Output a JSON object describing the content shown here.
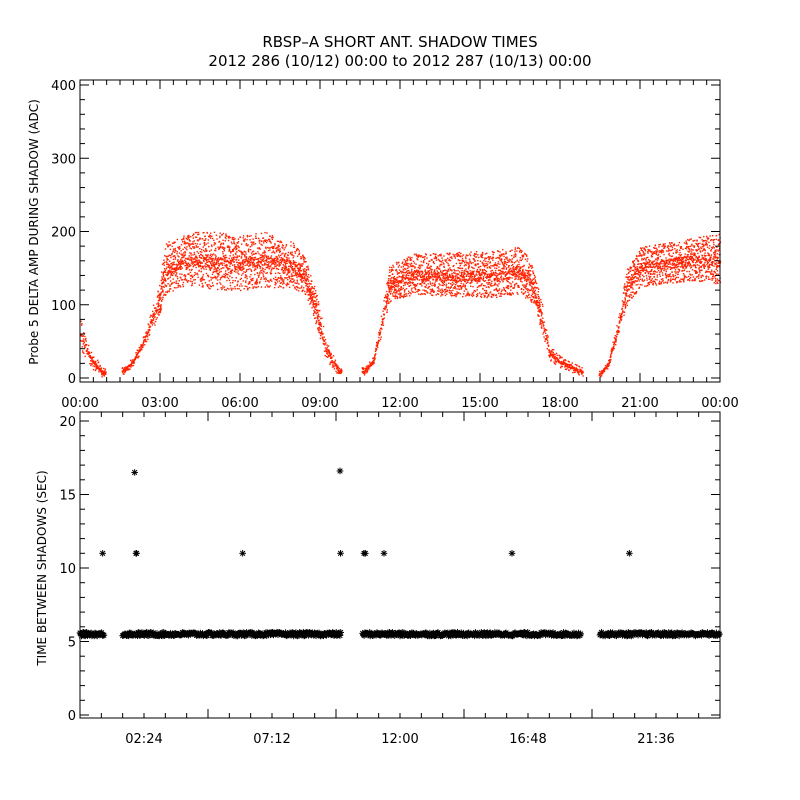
{
  "title": {
    "line1": "RBSP–A SHORT ANT. SHADOW TIMES",
    "line2": "2012 286 (10/12) 00:00 to 2012 287 (10/13) 00:00"
  },
  "colors": {
    "series_top": "#ff2200",
    "series_bottom": "#000000",
    "axes": "#000000"
  },
  "chart_data": [
    {
      "type": "scatter",
      "ylabel": "Probe 5 DELTA AMP DURING SHADOW (ADC)",
      "xlabel": "",
      "xlim_hours": [
        0,
        24
      ],
      "ylim": [
        0,
        400
      ],
      "x_ticks": [
        "00:00",
        "03:00",
        "06:00",
        "09:00",
        "12:00",
        "15:00",
        "18:00",
        "21:00",
        "00:00"
      ],
      "y_ticks": [
        "0",
        "100",
        "200",
        "300",
        "400"
      ],
      "series": [
        {
          "marker": "dot",
          "color": "#ff2200",
          "envelope": {
            "x_hours": [
              0.0,
              0.4,
              0.8,
              1.6,
              2.0,
              2.4,
              2.9,
              3.2,
              4.0,
              5.0,
              6.0,
              7.0,
              8.0,
              8.5,
              8.9,
              9.2,
              9.7,
              10.6,
              11.0,
              11.3,
              11.6,
              12.5,
              14.0,
              15.5,
              16.5,
              16.9,
              17.3,
              17.6,
              18.0,
              18.8,
              19.5,
              19.8,
              20.1,
              20.5,
              21.0,
              22.0,
              23.0,
              24.0
            ],
            "y_low": [
              40,
              15,
              2,
              5,
              18,
              45,
              80,
              115,
              128,
              122,
              120,
              125,
              122,
              110,
              65,
              25,
              4,
              2,
              20,
              60,
              105,
              115,
              112,
              110,
              115,
              105,
              65,
              25,
              15,
              3,
              2,
              15,
              50,
              100,
              125,
              130,
              133,
              128
            ],
            "y_high": [
              80,
              40,
              15,
              15,
              30,
              60,
              120,
              185,
              200,
              200,
              195,
              200,
              185,
              160,
              110,
              55,
              15,
              15,
              30,
              90,
              155,
              170,
              172,
              175,
              180,
              160,
              105,
              45,
              30,
              15,
              10,
              25,
              70,
              150,
              180,
              185,
              192,
              198
            ]
          }
        }
      ]
    },
    {
      "type": "scatter",
      "ylabel": "TIME BETWEEN SHADOWS (SEC)",
      "xlabel": "",
      "xlim_hours": [
        0,
        24
      ],
      "ylim": [
        0,
        20
      ],
      "x_ticks": [
        "02:24",
        "07:12",
        "12:00",
        "16:48",
        "21:36"
      ],
      "y_ticks": [
        "0",
        "5",
        "10",
        "15",
        "20"
      ],
      "series": [
        {
          "marker": "asterisk",
          "color": "#000000",
          "baseline_value": 5.5,
          "baseline_segments_hours": [
            [
              0.0,
              0.9
            ],
            [
              1.6,
              9.8
            ],
            [
              10.6,
              18.8
            ],
            [
              19.5,
              24.0
            ]
          ],
          "outliers": {
            "x_hours": [
              0.85,
              2.05,
              2.1,
              2.12,
              6.1,
              9.75,
              9.77,
              10.65,
              10.7,
              11.4,
              16.2,
              20.6
            ],
            "y": [
              11.0,
              16.5,
              11.0,
              11.0,
              11.0,
              16.6,
              11.0,
              11.0,
              11.0,
              11.0,
              11.0,
              11.0
            ]
          }
        }
      ]
    }
  ]
}
